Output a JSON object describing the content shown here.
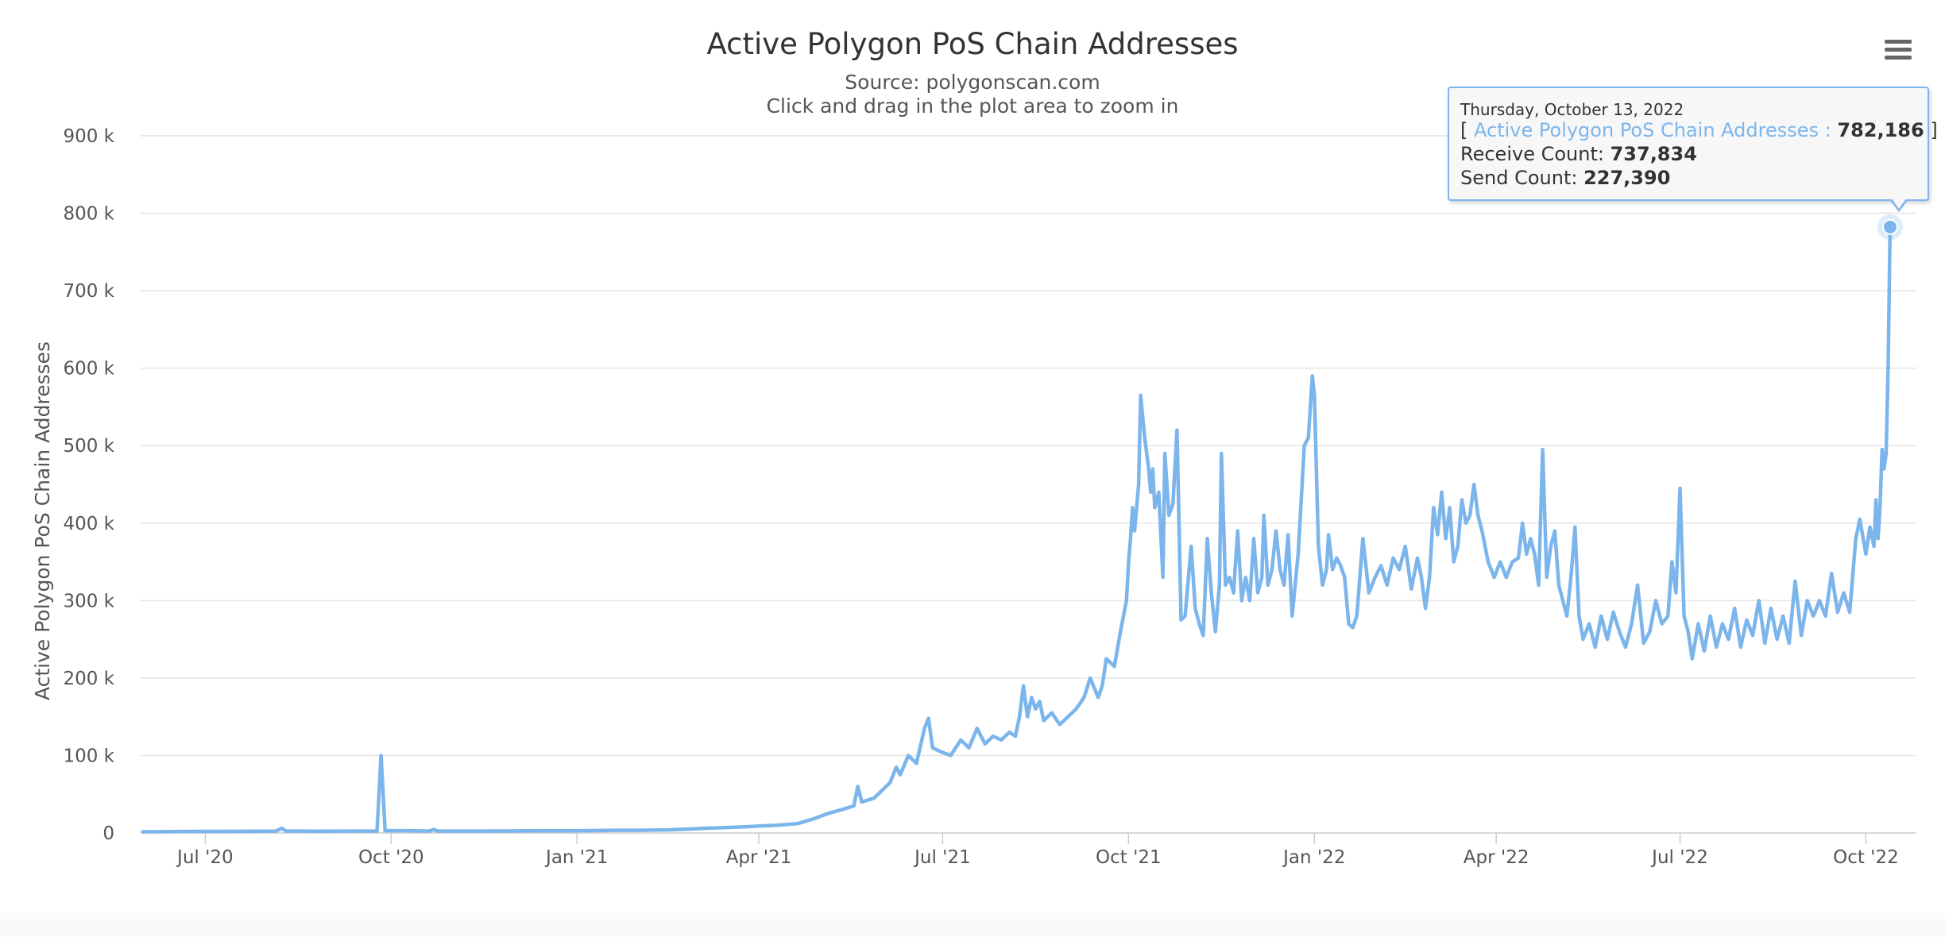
{
  "chart_data": {
    "type": "line",
    "title": "Active Polygon PoS Chain Addresses",
    "subtitle": "Source: polygonscan.com",
    "instruction": "Click and drag in the plot area to zoom in",
    "ylabel": "Active Polygon PoS Chain Addresses",
    "ylim": [
      0,
      900000
    ],
    "yticks": [
      0,
      100000,
      200000,
      300000,
      400000,
      500000,
      600000,
      700000,
      800000,
      900000
    ],
    "ytick_labels": [
      "0",
      "100 k",
      "200 k",
      "300 k",
      "400 k",
      "500 k",
      "600 k",
      "700 k",
      "800 k",
      "900 k"
    ],
    "xlim": [
      "2020-05-30",
      "2022-10-26"
    ],
    "xticks": [
      {
        "date": "2020-07-01",
        "label": "Jul '20"
      },
      {
        "date": "2020-10-01",
        "label": "Oct '20"
      },
      {
        "date": "2021-01-01",
        "label": "Jan '21"
      },
      {
        "date": "2021-04-01",
        "label": "Apr '21"
      },
      {
        "date": "2021-07-01",
        "label": "Jul '21"
      },
      {
        "date": "2021-10-01",
        "label": "Oct '21"
      },
      {
        "date": "2022-01-01",
        "label": "Jan '22"
      },
      {
        "date": "2022-04-01",
        "label": "Apr '22"
      },
      {
        "date": "2022-07-01",
        "label": "Jul '22"
      },
      {
        "date": "2022-10-01",
        "label": "Oct '22"
      }
    ],
    "grid": true,
    "legend": "none",
    "series": [
      {
        "name": "Active Polygon PoS Chain Addresses",
        "color": "#7cb5ec",
        "points": [
          [
            "2020-05-31",
            1500
          ],
          [
            "2020-06-15",
            1800
          ],
          [
            "2020-07-01",
            2000
          ],
          [
            "2020-07-20",
            2200
          ],
          [
            "2020-08-05",
            2500
          ],
          [
            "2020-08-08",
            6000
          ],
          [
            "2020-08-10",
            2500
          ],
          [
            "2020-08-25",
            2400
          ],
          [
            "2020-09-10",
            2500
          ],
          [
            "2020-09-24",
            2600
          ],
          [
            "2020-09-26",
            100000
          ],
          [
            "2020-09-28",
            3000
          ],
          [
            "2020-10-10",
            3000
          ],
          [
            "2020-10-20",
            2500
          ],
          [
            "2020-10-22",
            4500
          ],
          [
            "2020-10-24",
            2500
          ],
          [
            "2020-11-15",
            2500
          ],
          [
            "2020-12-10",
            2800
          ],
          [
            "2021-01-05",
            3000
          ],
          [
            "2021-01-20",
            3500
          ],
          [
            "2021-02-01",
            3500
          ],
          [
            "2021-02-15",
            4000
          ],
          [
            "2021-02-25",
            5000
          ],
          [
            "2021-03-05",
            6000
          ],
          [
            "2021-03-15",
            7000
          ],
          [
            "2021-03-25",
            8000
          ],
          [
            "2021-04-01",
            9000
          ],
          [
            "2021-04-10",
            10000
          ],
          [
            "2021-04-20",
            12000
          ],
          [
            "2021-04-28",
            18000
          ],
          [
            "2021-05-05",
            25000
          ],
          [
            "2021-05-12",
            30000
          ],
          [
            "2021-05-18",
            35000
          ],
          [
            "2021-05-20",
            60000
          ],
          [
            "2021-05-22",
            40000
          ],
          [
            "2021-05-28",
            45000
          ],
          [
            "2021-06-01",
            55000
          ],
          [
            "2021-06-05",
            65000
          ],
          [
            "2021-06-08",
            85000
          ],
          [
            "2021-06-10",
            75000
          ],
          [
            "2021-06-14",
            100000
          ],
          [
            "2021-06-18",
            90000
          ],
          [
            "2021-06-22",
            135000
          ],
          [
            "2021-06-24",
            148000
          ],
          [
            "2021-06-26",
            110000
          ],
          [
            "2021-06-30",
            105000
          ],
          [
            "2021-07-05",
            100000
          ],
          [
            "2021-07-10",
            120000
          ],
          [
            "2021-07-14",
            110000
          ],
          [
            "2021-07-18",
            135000
          ],
          [
            "2021-07-22",
            115000
          ],
          [
            "2021-07-26",
            125000
          ],
          [
            "2021-07-30",
            120000
          ],
          [
            "2021-08-03",
            130000
          ],
          [
            "2021-08-06",
            125000
          ],
          [
            "2021-08-08",
            150000
          ],
          [
            "2021-08-10",
            190000
          ],
          [
            "2021-08-12",
            150000
          ],
          [
            "2021-08-14",
            175000
          ],
          [
            "2021-08-16",
            160000
          ],
          [
            "2021-08-18",
            170000
          ],
          [
            "2021-08-20",
            145000
          ],
          [
            "2021-08-24",
            155000
          ],
          [
            "2021-08-28",
            140000
          ],
          [
            "2021-09-01",
            150000
          ],
          [
            "2021-09-05",
            160000
          ],
          [
            "2021-09-09",
            175000
          ],
          [
            "2021-09-12",
            200000
          ],
          [
            "2021-09-16",
            175000
          ],
          [
            "2021-09-18",
            190000
          ],
          [
            "2021-09-20",
            225000
          ],
          [
            "2021-09-24",
            215000
          ],
          [
            "2021-09-27",
            260000
          ],
          [
            "2021-09-30",
            300000
          ],
          [
            "2021-10-01",
            350000
          ],
          [
            "2021-10-02",
            380000
          ],
          [
            "2021-10-03",
            420000
          ],
          [
            "2021-10-04",
            390000
          ],
          [
            "2021-10-06",
            450000
          ],
          [
            "2021-10-07",
            565000
          ],
          [
            "2021-10-09",
            510000
          ],
          [
            "2021-10-11",
            470000
          ],
          [
            "2021-10-12",
            440000
          ],
          [
            "2021-10-13",
            470000
          ],
          [
            "2021-10-14",
            420000
          ],
          [
            "2021-10-16",
            440000
          ],
          [
            "2021-10-18",
            330000
          ],
          [
            "2021-10-19",
            490000
          ],
          [
            "2021-10-21",
            410000
          ],
          [
            "2021-10-23",
            425000
          ],
          [
            "2021-10-25",
            520000
          ],
          [
            "2021-10-27",
            275000
          ],
          [
            "2021-10-29",
            280000
          ],
          [
            "2021-11-01",
            370000
          ],
          [
            "2021-11-03",
            290000
          ],
          [
            "2021-11-05",
            270000
          ],
          [
            "2021-11-07",
            255000
          ],
          [
            "2021-11-09",
            380000
          ],
          [
            "2021-11-11",
            310000
          ],
          [
            "2021-11-13",
            260000
          ],
          [
            "2021-11-15",
            320000
          ],
          [
            "2021-11-16",
            490000
          ],
          [
            "2021-11-18",
            320000
          ],
          [
            "2021-11-20",
            330000
          ],
          [
            "2021-11-22",
            310000
          ],
          [
            "2021-11-24",
            390000
          ],
          [
            "2021-11-26",
            300000
          ],
          [
            "2021-11-28",
            330000
          ],
          [
            "2021-11-30",
            300000
          ],
          [
            "2021-12-02",
            380000
          ],
          [
            "2021-12-04",
            310000
          ],
          [
            "2021-12-06",
            330000
          ],
          [
            "2021-12-07",
            410000
          ],
          [
            "2021-12-09",
            320000
          ],
          [
            "2021-12-11",
            340000
          ],
          [
            "2021-12-13",
            390000
          ],
          [
            "2021-12-15",
            340000
          ],
          [
            "2021-12-17",
            320000
          ],
          [
            "2021-12-19",
            385000
          ],
          [
            "2021-12-21",
            280000
          ],
          [
            "2021-12-24",
            360000
          ],
          [
            "2021-12-27",
            500000
          ],
          [
            "2021-12-29",
            510000
          ],
          [
            "2021-12-31",
            590000
          ],
          [
            "2022-01-01",
            565000
          ],
          [
            "2022-01-03",
            370000
          ],
          [
            "2022-01-05",
            320000
          ],
          [
            "2022-01-07",
            340000
          ],
          [
            "2022-01-08",
            385000
          ],
          [
            "2022-01-10",
            340000
          ],
          [
            "2022-01-12",
            355000
          ],
          [
            "2022-01-14",
            345000
          ],
          [
            "2022-01-16",
            330000
          ],
          [
            "2022-01-18",
            270000
          ],
          [
            "2022-01-20",
            265000
          ],
          [
            "2022-01-22",
            280000
          ],
          [
            "2022-01-25",
            380000
          ],
          [
            "2022-01-28",
            310000
          ],
          [
            "2022-01-31",
            330000
          ],
          [
            "2022-02-03",
            345000
          ],
          [
            "2022-02-06",
            320000
          ],
          [
            "2022-02-09",
            355000
          ],
          [
            "2022-02-12",
            340000
          ],
          [
            "2022-02-15",
            370000
          ],
          [
            "2022-02-18",
            315000
          ],
          [
            "2022-02-21",
            355000
          ],
          [
            "2022-02-23",
            330000
          ],
          [
            "2022-02-25",
            290000
          ],
          [
            "2022-02-27",
            330000
          ],
          [
            "2022-03-01",
            420000
          ],
          [
            "2022-03-03",
            385000
          ],
          [
            "2022-03-05",
            440000
          ],
          [
            "2022-03-07",
            380000
          ],
          [
            "2022-03-09",
            420000
          ],
          [
            "2022-03-11",
            350000
          ],
          [
            "2022-03-13",
            370000
          ],
          [
            "2022-03-15",
            430000
          ],
          [
            "2022-03-17",
            400000
          ],
          [
            "2022-03-19",
            410000
          ],
          [
            "2022-03-21",
            450000
          ],
          [
            "2022-03-23",
            410000
          ],
          [
            "2022-03-25",
            390000
          ],
          [
            "2022-03-28",
            350000
          ],
          [
            "2022-03-31",
            330000
          ],
          [
            "2022-04-03",
            350000
          ],
          [
            "2022-04-06",
            330000
          ],
          [
            "2022-04-09",
            350000
          ],
          [
            "2022-04-12",
            355000
          ],
          [
            "2022-04-14",
            400000
          ],
          [
            "2022-04-16",
            360000
          ],
          [
            "2022-04-18",
            380000
          ],
          [
            "2022-04-20",
            360000
          ],
          [
            "2022-04-22",
            320000
          ],
          [
            "2022-04-24",
            495000
          ],
          [
            "2022-04-26",
            330000
          ],
          [
            "2022-04-28",
            370000
          ],
          [
            "2022-04-30",
            390000
          ],
          [
            "2022-05-02",
            320000
          ],
          [
            "2022-05-04",
            300000
          ],
          [
            "2022-05-06",
            280000
          ],
          [
            "2022-05-08",
            330000
          ],
          [
            "2022-05-10",
            395000
          ],
          [
            "2022-05-12",
            280000
          ],
          [
            "2022-05-14",
            250000
          ],
          [
            "2022-05-17",
            270000
          ],
          [
            "2022-05-20",
            240000
          ],
          [
            "2022-05-23",
            280000
          ],
          [
            "2022-05-26",
            250000
          ],
          [
            "2022-05-29",
            285000
          ],
          [
            "2022-06-01",
            260000
          ],
          [
            "2022-06-04",
            240000
          ],
          [
            "2022-06-07",
            270000
          ],
          [
            "2022-06-10",
            320000
          ],
          [
            "2022-06-13",
            245000
          ],
          [
            "2022-06-16",
            260000
          ],
          [
            "2022-06-19",
            300000
          ],
          [
            "2022-06-22",
            270000
          ],
          [
            "2022-06-25",
            280000
          ],
          [
            "2022-06-27",
            350000
          ],
          [
            "2022-06-29",
            310000
          ],
          [
            "2022-07-01",
            445000
          ],
          [
            "2022-07-03",
            280000
          ],
          [
            "2022-07-05",
            260000
          ],
          [
            "2022-07-07",
            225000
          ],
          [
            "2022-07-10",
            270000
          ],
          [
            "2022-07-13",
            235000
          ],
          [
            "2022-07-16",
            280000
          ],
          [
            "2022-07-19",
            240000
          ],
          [
            "2022-07-22",
            270000
          ],
          [
            "2022-07-25",
            250000
          ],
          [
            "2022-07-28",
            290000
          ],
          [
            "2022-07-31",
            240000
          ],
          [
            "2022-08-03",
            275000
          ],
          [
            "2022-08-06",
            255000
          ],
          [
            "2022-08-09",
            300000
          ],
          [
            "2022-08-12",
            245000
          ],
          [
            "2022-08-15",
            290000
          ],
          [
            "2022-08-18",
            250000
          ],
          [
            "2022-08-21",
            280000
          ],
          [
            "2022-08-24",
            245000
          ],
          [
            "2022-08-27",
            325000
          ],
          [
            "2022-08-30",
            255000
          ],
          [
            "2022-09-02",
            300000
          ],
          [
            "2022-09-05",
            280000
          ],
          [
            "2022-09-08",
            300000
          ],
          [
            "2022-09-11",
            280000
          ],
          [
            "2022-09-14",
            335000
          ],
          [
            "2022-09-17",
            285000
          ],
          [
            "2022-09-20",
            310000
          ],
          [
            "2022-09-23",
            285000
          ],
          [
            "2022-09-26",
            380000
          ],
          [
            "2022-09-28",
            405000
          ],
          [
            "2022-10-01",
            360000
          ],
          [
            "2022-10-03",
            395000
          ],
          [
            "2022-10-05",
            370000
          ],
          [
            "2022-10-06",
            430000
          ],
          [
            "2022-10-07",
            380000
          ],
          [
            "2022-10-08",
            420000
          ],
          [
            "2022-10-09",
            495000
          ],
          [
            "2022-10-10",
            470000
          ],
          [
            "2022-10-11",
            490000
          ],
          [
            "2022-10-12",
            600000
          ],
          [
            "2022-10-13",
            782186
          ]
        ]
      }
    ],
    "tooltip": {
      "date": "Thursday, October 13, 2022",
      "open_bracket": "[",
      "series_label": "Active Polygon PoS Chain Addresses",
      "separator": ":",
      "value": "782,186",
      "close_bracket": "]",
      "receive_label": "Receive Count:",
      "receive_value": "737,834",
      "send_label": "Send Count:",
      "send_value": "227,390",
      "x": "2022-10-13",
      "y": 782186
    }
  },
  "menu": {
    "icon": "hamburger-menu-icon"
  }
}
